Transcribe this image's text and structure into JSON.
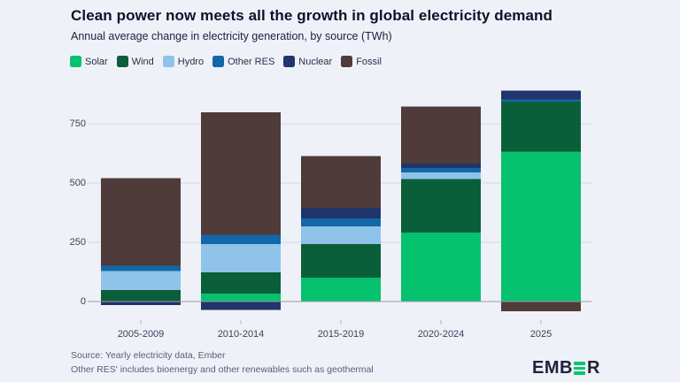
{
  "header": {
    "title": "Clean power now meets all the growth in global electricity demand",
    "subtitle": "Annual average change in electricity generation, by source (TWh)"
  },
  "chart_data": {
    "type": "bar",
    "stacked": true,
    "title": "Clean power now meets all the growth in global electricity demand",
    "subtitle": "Annual average change in electricity generation, by source (TWh)",
    "unit": "TWh",
    "categories": [
      "2005-2009",
      "2010-2014",
      "2015-2019",
      "2020-2024",
      "2025"
    ],
    "series": [
      {
        "name": "Solar",
        "color": "#06c16d",
        "values": [
          2,
          34,
          100,
          291,
          633
        ]
      },
      {
        "name": "Wind",
        "color": "#0b5e3a",
        "values": [
          47,
          90,
          143,
          225,
          210
        ]
      },
      {
        "name": "Hydro",
        "color": "#8fc3e9",
        "values": [
          79,
          119,
          75,
          28,
          0
        ]
      },
      {
        "name": "Other RES",
        "color": "#1367a7",
        "values": [
          23,
          38,
          33,
          20,
          9
        ]
      },
      {
        "name": "Nuclear",
        "color": "#20356b",
        "values": [
          -15,
          -35,
          44,
          18,
          37
        ]
      },
      {
        "name": "Fossil",
        "color": "#4f3b39",
        "values": [
          370,
          517,
          219,
          241,
          -41
        ]
      }
    ],
    "yticks": [
      0,
      250,
      500,
      750
    ],
    "ylim": [
      -60,
      900
    ],
    "grid": true,
    "legend_position": "top-left"
  },
  "footer": {
    "source": "Source: Yearly electricity data, Ember",
    "note": "Other RES' includes bioenergy and other renewables such as geothermal",
    "logo_prefix": "EMB",
    "logo_suffix": "R",
    "logo_accent_color": "#0ec46e"
  }
}
